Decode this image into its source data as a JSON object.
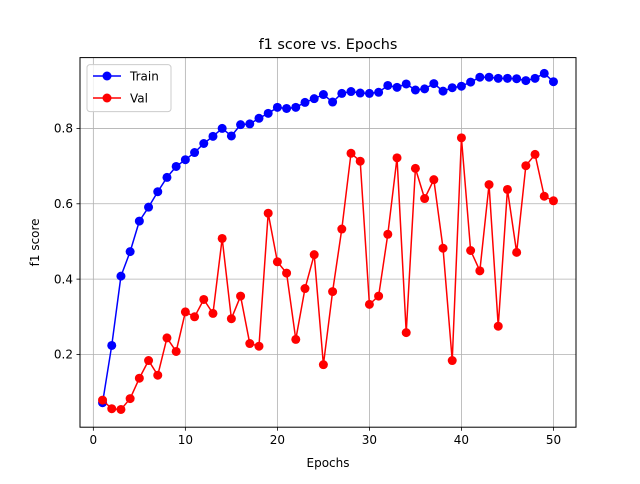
{
  "chart_data": {
    "type": "line",
    "title": "f1 score vs. Epochs",
    "xlabel": "Epochs",
    "ylabel": "f1 score",
    "xlim": [
      -1.45,
      52.45
    ],
    "ylim": [
      0.007,
      0.988
    ],
    "xticks": [
      0,
      10,
      20,
      30,
      40,
      50
    ],
    "xtick_labels": [
      "0",
      "10",
      "20",
      "30",
      "40",
      "50"
    ],
    "yticks": [
      0.2,
      0.4,
      0.6,
      0.8
    ],
    "ytick_labels": [
      "0.2",
      "0.4",
      "0.6",
      "0.8"
    ],
    "grid": true,
    "legend_position": "top-left",
    "x": [
      1,
      2,
      3,
      4,
      5,
      6,
      7,
      8,
      9,
      10,
      11,
      12,
      13,
      14,
      15,
      16,
      17,
      18,
      19,
      20,
      21,
      22,
      23,
      24,
      25,
      26,
      27,
      28,
      29,
      30,
      31,
      32,
      33,
      34,
      35,
      36,
      37,
      38,
      39,
      40,
      41,
      42,
      43,
      44,
      45,
      46,
      47,
      48,
      49,
      50
    ],
    "series": [
      {
        "name": "Train",
        "color": "#0000ff",
        "values": [
          0.072,
          0.224,
          0.408,
          0.473,
          0.554,
          0.591,
          0.632,
          0.67,
          0.699,
          0.717,
          0.736,
          0.76,
          0.779,
          0.8,
          0.78,
          0.81,
          0.812,
          0.827,
          0.84,
          0.856,
          0.853,
          0.856,
          0.869,
          0.879,
          0.89,
          0.87,
          0.893,
          0.898,
          0.894,
          0.893,
          0.896,
          0.914,
          0.909,
          0.918,
          0.902,
          0.905,
          0.919,
          0.899,
          0.908,
          0.912,
          0.923,
          0.936,
          0.936,
          0.933,
          0.933,
          0.932,
          0.927,
          0.933,
          0.946,
          0.924
        ]
      },
      {
        "name": "Val",
        "color": "#ff0000",
        "values": [
          0.079,
          0.056,
          0.054,
          0.083,
          0.137,
          0.184,
          0.145,
          0.244,
          0.208,
          0.313,
          0.3,
          0.346,
          0.309,
          0.508,
          0.295,
          0.355,
          0.229,
          0.222,
          0.575,
          0.446,
          0.416,
          0.24,
          0.375,
          0.465,
          0.173,
          0.367,
          0.533,
          0.734,
          0.713,
          0.333,
          0.355,
          0.519,
          0.722,
          0.258,
          0.694,
          0.614,
          0.664,
          0.482,
          0.184,
          0.775,
          0.476,
          0.422,
          0.651,
          0.275,
          0.638,
          0.471,
          0.701,
          0.731,
          0.62,
          0.608
        ]
      }
    ]
  }
}
